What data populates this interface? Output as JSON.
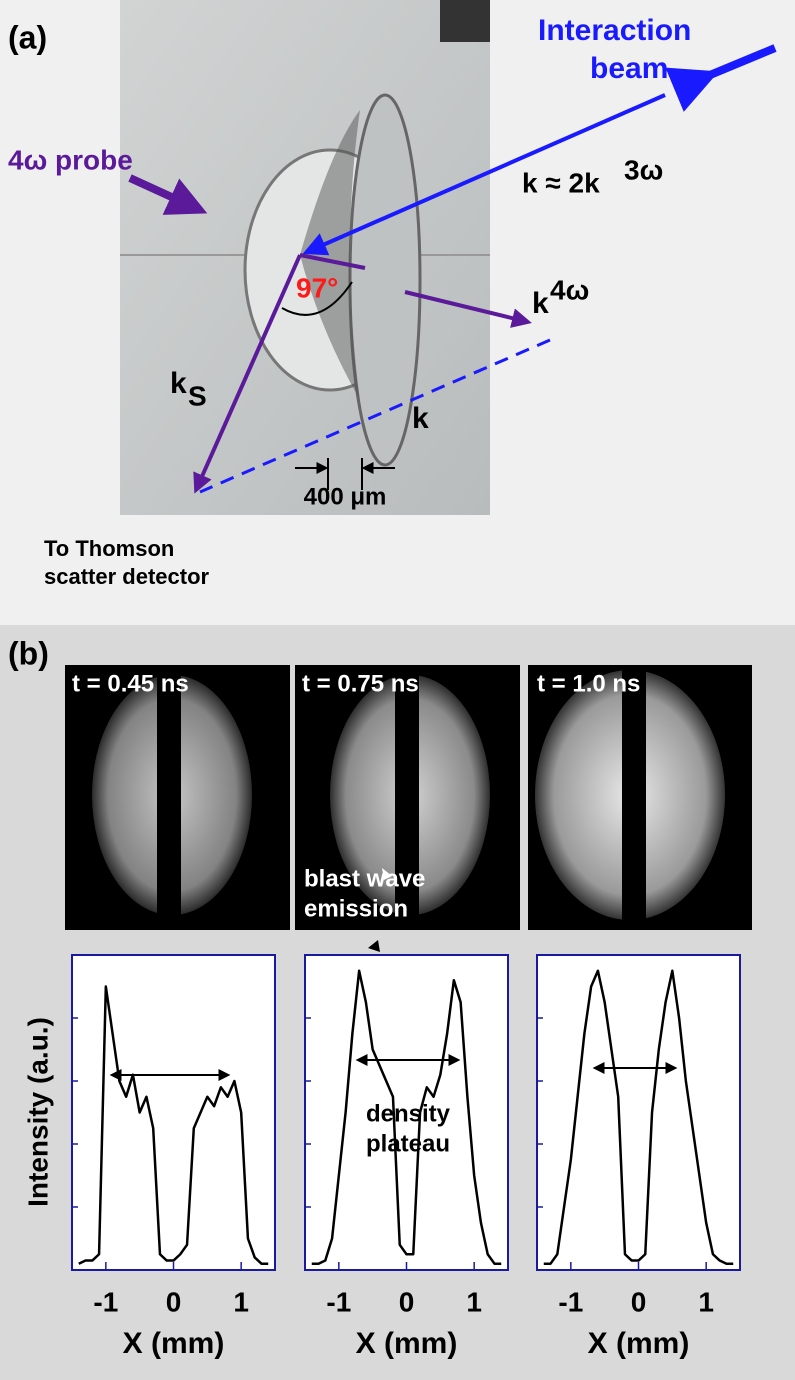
{
  "panel_a": {
    "label": "(a)",
    "interaction_beam": [
      "Interaction",
      "beam"
    ],
    "probe": "4ω probe",
    "k_relation": "k ≈ 2k",
    "k_relation_sup": "3ω",
    "angle": "97°",
    "k4w": "k",
    "k4w_sup": "4ω",
    "ks": "k",
    "ks_sub": "S",
    "k": "k",
    "scale": "400 μm",
    "detector": [
      "To Thomson",
      "scatter detector"
    ]
  },
  "panel_b": {
    "label": "(b)",
    "times": [
      "t = 0.45 ns",
      "t = 0.75 ns",
      "t = 1.0 ns"
    ],
    "blast": [
      "blast wave",
      "emission"
    ],
    "density": [
      "density",
      "plateau"
    ],
    "y_label": "Intensity (a.u.)"
  },
  "chart_data": [
    {
      "type": "line",
      "xlabel": "X (mm)",
      "xlim": [
        -1.5,
        1.5
      ],
      "ylim": [
        0,
        1
      ],
      "xticks": [
        -1,
        0,
        1
      ],
      "x": [
        -1.4,
        -1.3,
        -1.2,
        -1.1,
        -1.0,
        -0.9,
        -0.8,
        -0.7,
        -0.6,
        -0.5,
        -0.4,
        -0.3,
        -0.2,
        -0.1,
        0,
        0.1,
        0.2,
        0.3,
        0.4,
        0.5,
        0.6,
        0.7,
        0.8,
        0.9,
        1.0,
        1.1,
        1.2,
        1.3,
        1.4
      ],
      "series": [
        {
          "color": "#000000",
          "values": [
            0.02,
            0.03,
            0.03,
            0.05,
            0.9,
            0.75,
            0.6,
            0.55,
            0.62,
            0.5,
            0.55,
            0.45,
            0.05,
            0.03,
            0.03,
            0.05,
            0.08,
            0.45,
            0.5,
            0.55,
            0.52,
            0.58,
            0.55,
            0.6,
            0.5,
            0.1,
            0.04,
            0.02,
            0.02
          ]
        }
      ]
    },
    {
      "type": "line",
      "xlabel": "X (mm)",
      "xlim": [
        -1.5,
        1.5
      ],
      "ylim": [
        0,
        1
      ],
      "xticks": [
        -1,
        0,
        1
      ],
      "x": [
        -1.4,
        -1.3,
        -1.2,
        -1.1,
        -1.0,
        -0.9,
        -0.8,
        -0.7,
        -0.6,
        -0.5,
        -0.4,
        -0.3,
        -0.2,
        -0.1,
        0,
        0.1,
        0.2,
        0.3,
        0.4,
        0.5,
        0.6,
        0.7,
        0.8,
        0.9,
        1.0,
        1.1,
        1.2,
        1.3,
        1.4
      ],
      "series": [
        {
          "color": "#000000",
          "values": [
            0.02,
            0.02,
            0.03,
            0.1,
            0.3,
            0.5,
            0.75,
            0.95,
            0.85,
            0.7,
            0.65,
            0.6,
            0.55,
            0.08,
            0.05,
            0.05,
            0.5,
            0.58,
            0.55,
            0.62,
            0.75,
            0.92,
            0.85,
            0.55,
            0.3,
            0.15,
            0.05,
            0.02,
            0.02
          ]
        }
      ]
    },
    {
      "type": "line",
      "xlabel": "X (mm)",
      "xlim": [
        -1.5,
        1.5
      ],
      "ylim": [
        0,
        1
      ],
      "xticks": [
        -1,
        0,
        1
      ],
      "x": [
        -1.4,
        -1.3,
        -1.2,
        -1.1,
        -1.0,
        -0.9,
        -0.8,
        -0.7,
        -0.6,
        -0.5,
        -0.4,
        -0.3,
        -0.2,
        -0.1,
        0,
        0.1,
        0.2,
        0.3,
        0.4,
        0.5,
        0.6,
        0.7,
        0.8,
        0.9,
        1.0,
        1.1,
        1.2,
        1.3,
        1.4
      ],
      "series": [
        {
          "color": "#000000",
          "values": [
            0.02,
            0.02,
            0.05,
            0.2,
            0.35,
            0.55,
            0.75,
            0.9,
            0.95,
            0.85,
            0.7,
            0.55,
            0.05,
            0.03,
            0.03,
            0.05,
            0.5,
            0.7,
            0.85,
            0.95,
            0.8,
            0.6,
            0.45,
            0.3,
            0.15,
            0.05,
            0.03,
            0.02,
            0.02
          ]
        }
      ]
    }
  ]
}
